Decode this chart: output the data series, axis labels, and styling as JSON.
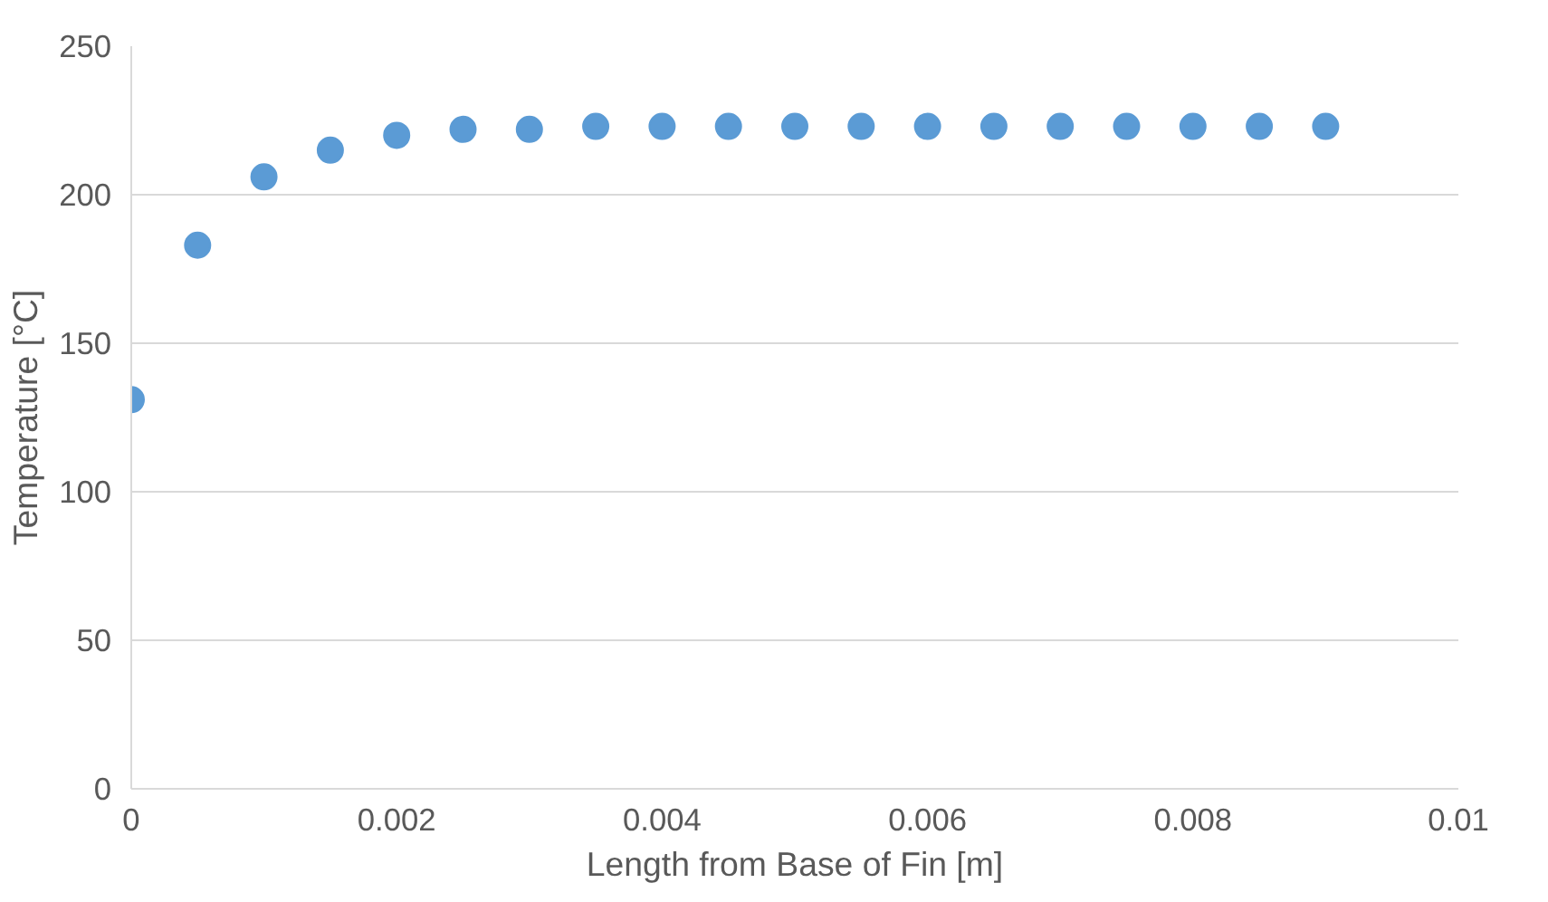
{
  "chart_data": {
    "type": "scatter",
    "xlabel": "Length from Base of Fin [m]",
    "ylabel": "Temperature [°C]",
    "x": [
      0,
      0.0005,
      0.001,
      0.0015,
      0.002,
      0.0025,
      0.003,
      0.0035,
      0.004,
      0.0045,
      0.005,
      0.0055,
      0.006,
      0.0065,
      0.007,
      0.0075,
      0.008,
      0.0085,
      0.009
    ],
    "series": [
      {
        "color": "#5b9bd5",
        "values": [
          131,
          183,
          206,
          215,
          220,
          222,
          222,
          223,
          223,
          223,
          223,
          223,
          223,
          223,
          223,
          223,
          223,
          223,
          223
        ]
      }
    ],
    "xlim": [
      0,
      0.01
    ],
    "xticks": [
      0,
      0.002,
      0.004,
      0.006,
      0.008,
      0.01
    ],
    "ylim": [
      0,
      250
    ],
    "yticks": [
      0,
      50,
      100,
      150,
      200,
      250
    ],
    "grid": "y",
    "marker": "circle"
  }
}
